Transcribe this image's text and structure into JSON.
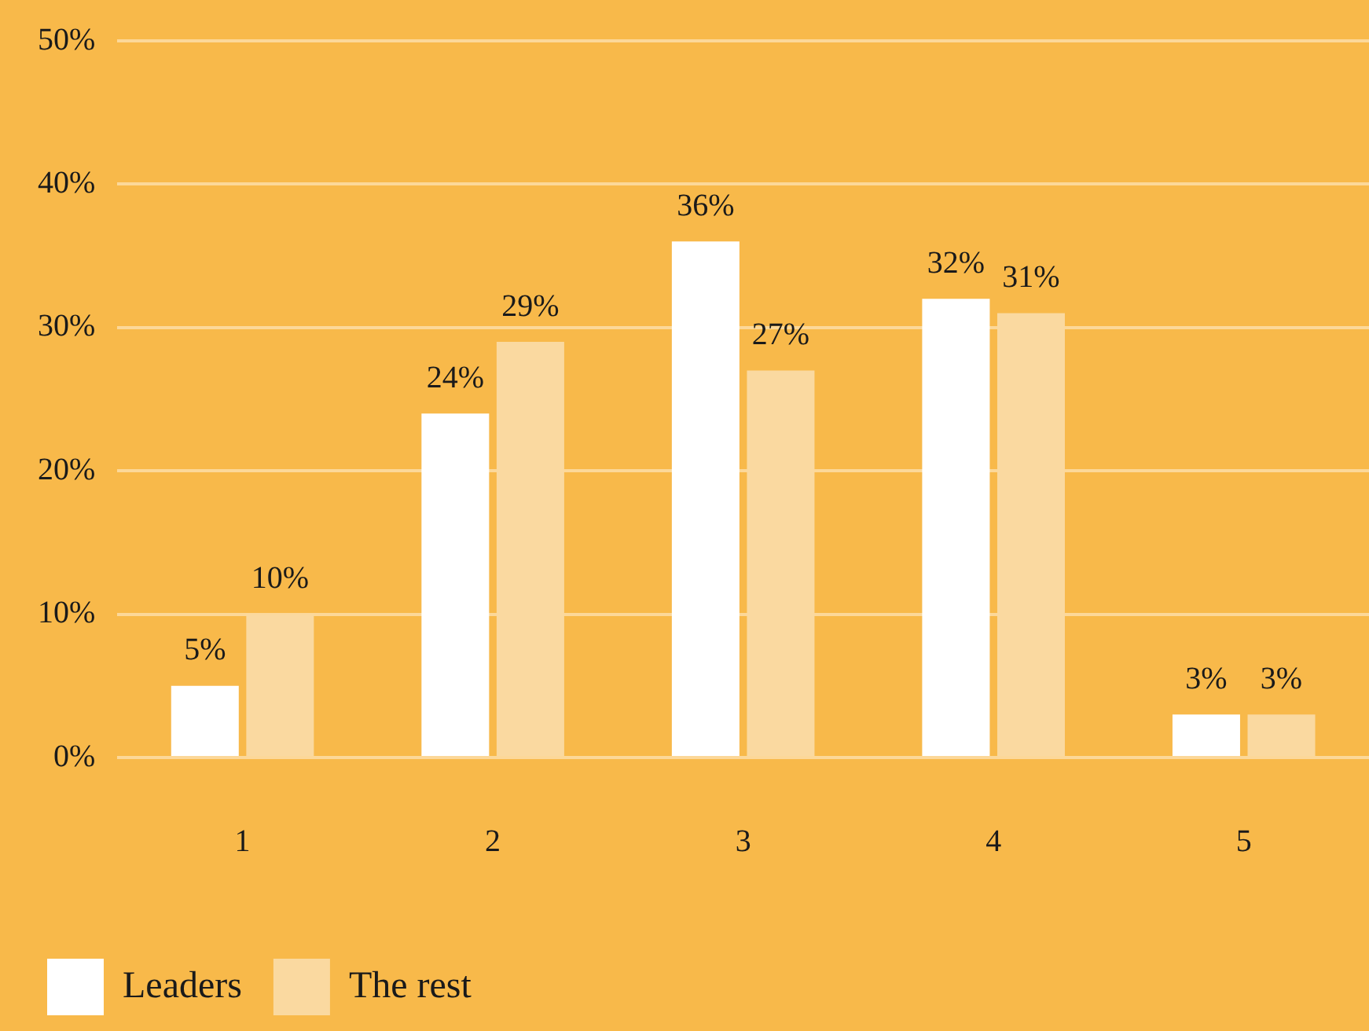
{
  "chart_data": {
    "type": "bar",
    "categories": [
      "1",
      "2",
      "3",
      "4",
      "5"
    ],
    "series": [
      {
        "name": "Leaders",
        "color": "#ffffff",
        "values": [
          5,
          24,
          36,
          32,
          3
        ],
        "value_labels": [
          "5%",
          "24%",
          "36%",
          "32%",
          "3%"
        ]
      },
      {
        "name": "The rest",
        "color": "#fad9a0",
        "values": [
          10,
          29,
          27,
          31,
          3
        ],
        "value_labels": [
          "10%",
          "29%",
          "27%",
          "31%",
          "3%"
        ]
      }
    ],
    "ylim": [
      0,
      50
    ],
    "yticks": [
      {
        "value": 0,
        "label": "0%"
      },
      {
        "value": 10,
        "label": "10%"
      },
      {
        "value": 20,
        "label": "20%"
      },
      {
        "value": 30,
        "label": "30%"
      },
      {
        "value": 40,
        "label": "40%"
      },
      {
        "value": 50,
        "label": "50%"
      }
    ],
    "grid": "y",
    "legend": "bottom left"
  }
}
